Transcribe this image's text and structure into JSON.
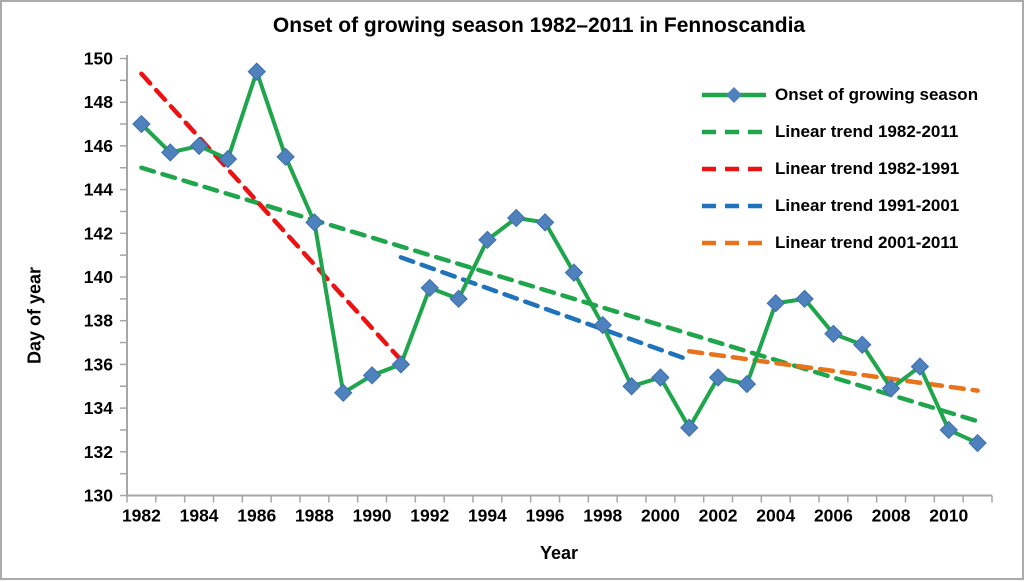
{
  "frame": {
    "background": "#ffffff",
    "border_color": "#ababab",
    "axis_color": "#a6a6a6",
    "text_color": "#000000"
  },
  "chart_data": {
    "type": "line",
    "title": "Onset of growing season 1982–2011 in Fennoscandia",
    "xlabel": "Year",
    "ylabel": "Day of year",
    "ylim": [
      130,
      150
    ],
    "y_tick_labels": [
      150,
      148,
      146,
      144,
      142,
      140,
      138,
      136,
      134,
      132,
      130
    ],
    "y_minor_tick_step": 1,
    "x_tick_labels": [
      1982,
      1984,
      1986,
      1988,
      1990,
      1992,
      1994,
      1996,
      1998,
      2000,
      2002,
      2004,
      2006,
      2008,
      2010
    ],
    "grid": false,
    "legend_position": "top-right",
    "x": [
      1982,
      1983,
      1984,
      1985,
      1986,
      1987,
      1988,
      1989,
      1990,
      1991,
      1992,
      1993,
      1994,
      1995,
      1996,
      1997,
      1998,
      1999,
      2000,
      2001,
      2002,
      2003,
      2004,
      2005,
      2006,
      2007,
      2008,
      2009,
      2010,
      2011
    ],
    "series": [
      {
        "name": "Onset of growing season",
        "style": "solid-with-markers",
        "color": "#1fa54c",
        "marker": "diamond",
        "marker_color": "#4f81bd",
        "marker_border": "#3d6eae",
        "values": [
          147.0,
          145.7,
          146.0,
          145.4,
          149.4,
          145.5,
          142.5,
          134.7,
          135.5,
          136.0,
          139.5,
          139.0,
          141.7,
          142.7,
          142.5,
          140.2,
          137.8,
          135.0,
          135.4,
          133.1,
          135.4,
          135.1,
          138.8,
          139.0,
          137.4,
          136.9,
          134.9,
          135.9,
          133.0,
          132.4
        ]
      },
      {
        "name": "Linear trend 1982-2011",
        "style": "dashed",
        "color": "#1fa54c",
        "points": [
          [
            1982,
            145.0
          ],
          [
            2011,
            133.4
          ]
        ]
      },
      {
        "name": "Linear trend 1982-1991",
        "style": "dashed",
        "color": "#ee1111",
        "points": [
          [
            1982,
            149.3
          ],
          [
            1991,
            136.2
          ]
        ]
      },
      {
        "name": "Linear trend 1991-2001",
        "style": "dashed",
        "color": "#1f72bc",
        "points": [
          [
            1991,
            140.9
          ],
          [
            2001,
            136.2
          ]
        ]
      },
      {
        "name": "Linear trend 2001-2011",
        "style": "dashed",
        "color": "#e8731a",
        "points": [
          [
            2001,
            136.6
          ],
          [
            2011,
            134.8
          ]
        ]
      }
    ]
  }
}
